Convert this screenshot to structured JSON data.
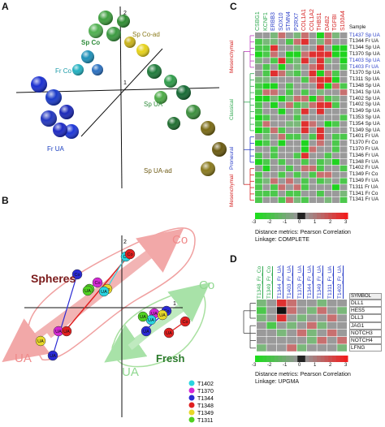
{
  "figure": {
    "panel_labels": {
      "A": "A",
      "B": "B",
      "C": "C",
      "D": "D"
    }
  },
  "panel_a": {
    "axis_labels": {
      "x": "1",
      "y": "2"
    },
    "group_labels": [
      {
        "text": "Sp Co",
        "color": "#2e8b3a"
      },
      {
        "text": "Sp Co-ad",
        "color": "#8a7a1a"
      },
      {
        "text": "Fr Co",
        "color": "#1a9aa8"
      },
      {
        "text": "Sp UA",
        "color": "#2e8b3a"
      },
      {
        "text": "Fr UA",
        "color": "#1a3fc0"
      },
      {
        "text": "Sp UA-ad",
        "color": "#6e5a14"
      }
    ],
    "spheres": [
      {
        "group": "spco",
        "c": "#3d9e3d"
      },
      {
        "group": "spco",
        "c": "#2f8c32"
      },
      {
        "group": "spco",
        "c": "#50b050"
      },
      {
        "group": "spco",
        "c": "#3a9a40"
      },
      {
        "group": "spcoad",
        "c": "#e6d21a"
      },
      {
        "group": "spcoad",
        "c": "#c9b21a"
      },
      {
        "group": "frco",
        "c": "#1e90b8"
      },
      {
        "group": "frco",
        "c": "#22b0c0"
      },
      {
        "group": "frco",
        "c": "#2b70c0"
      },
      {
        "group": "spua",
        "c": "#1e7a3a"
      },
      {
        "group": "spua",
        "c": "#2f9c4a"
      },
      {
        "group": "spua",
        "c": "#166a34"
      },
      {
        "group": "spua",
        "c": "#4caa46"
      },
      {
        "group": "spua",
        "c": "#3b8e3c"
      },
      {
        "group": "spua",
        "c": "#1f6e30"
      },
      {
        "group": "frua",
        "c": "#1a2fd0"
      },
      {
        "group": "frua",
        "c": "#1a3ac8"
      },
      {
        "group": "frua",
        "c": "#2236c0"
      },
      {
        "group": "frua",
        "c": "#1b28b8"
      },
      {
        "group": "frua",
        "c": "#1c36d8"
      },
      {
        "group": "frua",
        "c": "#1e2ac4"
      },
      {
        "group": "spuaad",
        "c": "#7a6a14"
      },
      {
        "group": "spuaad",
        "c": "#6a5a10"
      },
      {
        "group": "spuaad",
        "c": "#8a7a1e"
      }
    ]
  },
  "panel_b": {
    "axis_labels": {
      "x": "1",
      "y": "2"
    },
    "region_labels": {
      "spheres": "Spheres",
      "fresh": "Fresh",
      "co_top": "Co",
      "ua_left": "UA",
      "co_right": "Co",
      "ua_bottom": "UA"
    },
    "point_labels": {
      "co": "Co",
      "ua": "UA"
    },
    "legend": [
      {
        "label": "T1402",
        "color": "#2ad4e0"
      },
      {
        "label": "T1370",
        "color": "#d428d4"
      },
      {
        "label": "T1344",
        "color": "#2a2ad4"
      },
      {
        "label": "T1348",
        "color": "#e02020"
      },
      {
        "label": "T1349",
        "color": "#e8d82a"
      },
      {
        "label": "T1311",
        "color": "#50d020"
      }
    ]
  },
  "panel_c": {
    "columns": [
      {
        "label": "CSBG1",
        "color": "#2fa84f"
      },
      {
        "label": "KCNF1",
        "color": "#2fa84f"
      },
      {
        "label": "ERBB3",
        "color": "#2a3ec8"
      },
      {
        "label": "SOX10",
        "color": "#2a3ec8"
      },
      {
        "label": "STMN4",
        "color": "#2a3ec8"
      },
      {
        "label": "P2RX7",
        "color": "#2a3ec8"
      },
      {
        "label": "COL1A1",
        "color": "#d42020"
      },
      {
        "label": "COL1A2",
        "color": "#d42020"
      },
      {
        "label": "THBS1",
        "color": "#d42020"
      },
      {
        "label": "DAB2",
        "color": "#d42020"
      },
      {
        "label": "TGFBI",
        "color": "#d42020"
      },
      {
        "label": "S100A4",
        "color": "#d42020"
      }
    ],
    "sample_header": "Sample",
    "rows": [
      {
        "label": "T1437 Sp UA",
        "color": "#2a3ec8"
      },
      {
        "label": "T1344 Fr UA",
        "color": "#111"
      },
      {
        "label": "T1344 Sp UA",
        "color": "#111"
      },
      {
        "label": "T1370 Sp UA",
        "color": "#111"
      },
      {
        "label": "T1403 Sp UA",
        "color": "#2a3ec8"
      },
      {
        "label": "T1403 Fr UA",
        "color": "#2a3ec8"
      },
      {
        "label": "T1370 Sp UA",
        "color": "#111"
      },
      {
        "label": "T1311 Sp UA",
        "color": "#111"
      },
      {
        "label": "T1348 Sp UA",
        "color": "#111"
      },
      {
        "label": "T1341 Sp UA",
        "color": "#111"
      },
      {
        "label": "T1402 Sp UA",
        "color": "#111"
      },
      {
        "label": "T1402 Sp UA",
        "color": "#111"
      },
      {
        "label": "T1349 Sp UA",
        "color": "#111"
      },
      {
        "label": "T1353 Sp UA",
        "color": "#111"
      },
      {
        "label": "T1354 Sp UA",
        "color": "#111"
      },
      {
        "label": "T1349 Sp UA",
        "color": "#111"
      },
      {
        "label": "T1401 Fr UA",
        "color": "#111"
      },
      {
        "label": "T1370 Fr Co",
        "color": "#111"
      },
      {
        "label": "T1370 Fr UA",
        "color": "#111"
      },
      {
        "label": "T1346 Fr UA",
        "color": "#111"
      },
      {
        "label": "T1348 Fr UA",
        "color": "#111"
      },
      {
        "label": "T1402 Fr UA",
        "color": "#111"
      },
      {
        "label": "T1349 Fr Co",
        "color": "#111"
      },
      {
        "label": "T1349 Fr UA",
        "color": "#111"
      },
      {
        "label": "T1311 Fr UA",
        "color": "#111"
      },
      {
        "label": "T1341 Fr Co",
        "color": "#111"
      },
      {
        "label": "T1341 Fr UA",
        "color": "#111"
      }
    ],
    "subtype_labels": [
      {
        "label": "Mesenchymal",
        "color": "#d42020"
      },
      {
        "label": "Classical",
        "color": "#2fa84f"
      },
      {
        "label": "Proneural",
        "color": "#2a3ec8"
      },
      {
        "label": "Mesenchymal",
        "color": "#d42020"
      }
    ],
    "cells": [
      [
        0,
        0,
        -1,
        1,
        0,
        -1,
        1,
        0,
        -3,
        1,
        -1,
        0
      ],
      [
        -2,
        -1,
        -1,
        0,
        -2,
        1,
        2,
        0,
        -1,
        1,
        0,
        0
      ],
      [
        -2,
        -2,
        2,
        0,
        0,
        -1,
        0,
        0,
        2,
        0,
        -3,
        -3
      ],
      [
        -3,
        -2,
        1,
        0,
        -3,
        -3,
        1,
        2,
        2,
        2,
        -3,
        -3
      ],
      [
        -1,
        0,
        -2,
        2,
        -2,
        -1,
        2,
        0,
        2,
        -1,
        0,
        -3
      ],
      [
        0,
        -2,
        0,
        -3,
        0,
        -1,
        0,
        1,
        2,
        0,
        0,
        -2
      ],
      [
        0,
        -2,
        2,
        1,
        -1,
        -2,
        0,
        2,
        -3,
        1,
        -2,
        0
      ],
      [
        -1,
        -1,
        0,
        0,
        0,
        0,
        -2,
        1,
        2,
        2,
        -3,
        0
      ],
      [
        -2,
        -3,
        -3,
        0,
        -2,
        0,
        0,
        0,
        2,
        -3,
        1,
        -2
      ],
      [
        -2,
        1,
        1,
        0,
        -2,
        0,
        -2,
        0,
        -1,
        0,
        0,
        1
      ],
      [
        -3,
        -3,
        -1,
        -3,
        -1,
        1,
        1,
        -3,
        1,
        -2,
        -1,
        0
      ],
      [
        -2,
        0,
        -3,
        0,
        1,
        -2,
        -1,
        1,
        2,
        2,
        -2,
        0
      ],
      [
        -2,
        0,
        0,
        -3,
        0,
        -1,
        2,
        0,
        2,
        0,
        0,
        0
      ],
      [
        -3,
        -2,
        0,
        0,
        0,
        -2,
        0,
        0,
        0,
        0,
        0,
        -2
      ],
      [
        -2,
        1,
        0,
        0,
        -1,
        -1,
        2,
        1,
        0,
        -3,
        -2,
        0
      ],
      [
        -3,
        -2,
        1,
        -2,
        0,
        0,
        2,
        0,
        2,
        0,
        0,
        0
      ],
      [
        0,
        -1,
        0,
        1,
        -2,
        -2,
        0,
        -2,
        2,
        0,
        -2,
        -2
      ],
      [
        -3,
        -2,
        0,
        -3,
        0,
        0,
        -3,
        0,
        1,
        0,
        -2,
        0
      ],
      [
        0,
        0,
        -2,
        0,
        0,
        0,
        -3,
        1,
        0,
        0,
        -2,
        0
      ],
      [
        -2,
        0,
        -2,
        0,
        0,
        -2,
        2,
        0,
        0,
        -2,
        0,
        0
      ],
      [
        -3,
        -2,
        0,
        -2,
        0,
        0,
        -2,
        0,
        -2,
        -1,
        -3,
        0
      ],
      [
        0,
        -3,
        0,
        0,
        -2,
        0,
        1,
        1,
        -2,
        0,
        0,
        -2
      ],
      [
        -2,
        0,
        0,
        -2,
        0,
        -2,
        0,
        -2,
        1,
        1,
        0,
        0
      ],
      [
        -2,
        -1,
        1,
        0,
        1,
        0,
        -2,
        0,
        -2,
        -1,
        0,
        -2
      ],
      [
        -2,
        0,
        -2,
        1,
        0,
        1,
        -2,
        0,
        0,
        0,
        -3,
        0
      ],
      [
        -2,
        -2,
        -2,
        0,
        -2,
        -2,
        0,
        0,
        -2,
        0,
        0,
        -1
      ],
      [
        -2,
        0,
        0,
        -2,
        1,
        -1,
        -2,
        0,
        0,
        -1,
        0,
        -2
      ]
    ],
    "scale_ticks": [
      "-3",
      "-2",
      "-1",
      "0",
      "1",
      "2",
      "3"
    ],
    "metric_text": "Distance metrics: Pearson Correlation",
    "linkage_text": "Linkage: COMPLETE"
  },
  "panel_d": {
    "columns": [
      {
        "label": "T1348_Fr_Co",
        "color": "#2fa84f"
      },
      {
        "label": "T1349_Fr_Co",
        "color": "#2fa84f"
      },
      {
        "label": "T1344_Fr_UA",
        "color": "#2a3ec8"
      },
      {
        "label": "T1403_Fr_UA",
        "color": "#2a3ec8"
      },
      {
        "label": "T1370_Fr_UA",
        "color": "#2a3ec8"
      },
      {
        "label": "T1344_Fr_UA",
        "color": "#2a3ec8"
      },
      {
        "label": "T1349_Fr_UA",
        "color": "#2a3ec8"
      },
      {
        "label": "T1311_Fr_UA",
        "color": "#2a3ec8"
      },
      {
        "label": "T1402_Fr_UA",
        "color": "#2a3ec8"
      }
    ],
    "symbol_header": "SYMBOL",
    "rows": [
      "DLL1",
      "HES5",
      "DLL3",
      "JAG1",
      "NOTCH3",
      "NOTCH4",
      "LFNG"
    ],
    "cells": [
      [
        -1,
        0,
        2,
        1,
        0,
        0,
        -1,
        0,
        0
      ],
      [
        -2,
        0,
        3,
        1,
        0,
        -1,
        1,
        0,
        -1
      ],
      [
        -1,
        0,
        2,
        0,
        -1,
        0,
        0,
        1,
        0
      ],
      [
        0,
        -2,
        0,
        -1,
        0,
        1,
        -1,
        0,
        0
      ],
      [
        0,
        0,
        -1,
        0,
        1,
        -1,
        0,
        1,
        0
      ],
      [
        0,
        0,
        0,
        0,
        0,
        -1,
        1,
        0,
        1
      ],
      [
        -1,
        0,
        0,
        1,
        -1,
        0,
        0,
        0,
        -1
      ]
    ],
    "scale_ticks": [
      "-3",
      "-2",
      "-1",
      "0",
      "1",
      "2",
      "3"
    ],
    "metric_text": "Distance metrics: Pearson Correlation",
    "linkage_text": "Linkage: UPGMA"
  }
}
